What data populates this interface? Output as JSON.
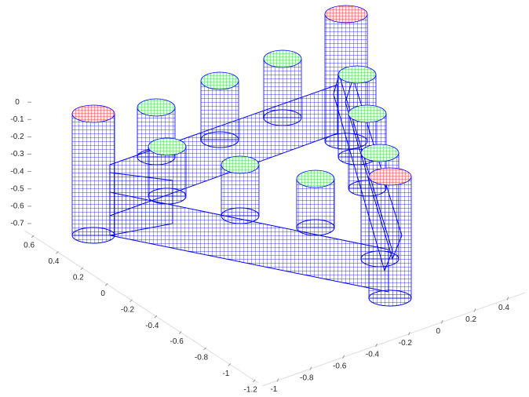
{
  "chart_data": {
    "type": "mesh3d",
    "xlim": [
      -1.1,
      0.5
    ],
    "xticks": [
      -1,
      -0.8,
      -0.6,
      -0.4,
      -0.2,
      0,
      0.2,
      0.4
    ],
    "ylim": [
      -1.25,
      0.65
    ],
    "yticks": [
      0.6,
      0.4,
      0.2,
      0,
      -0.2,
      -0.4,
      -0.6,
      -0.8,
      -1,
      -1.2
    ],
    "zlim": [
      -0.75,
      0
    ],
    "zticks": [
      0,
      -0.1,
      -0.2,
      -0.3,
      -0.4,
      -0.5,
      -0.6,
      -0.7
    ],
    "color": "#0000ff",
    "grid": false
  }
}
